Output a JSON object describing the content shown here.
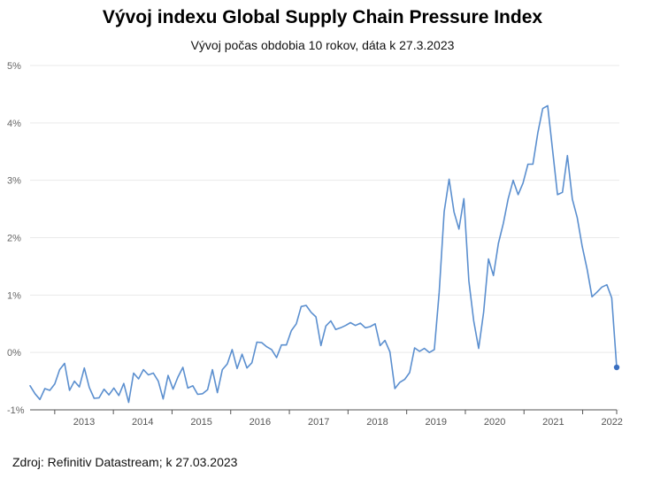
{
  "title": "Vývoj indexu Global Supply Chain Pressure Index",
  "subtitle": "Vývoj počas obdobia 10 rokov, dáta k 27.3.2023",
  "source": "Zdroj: Refinitiv Datastream; k 27.03.2023",
  "colors": {
    "line": "#5b8fcf",
    "marker": "#3a6fc0",
    "grid": "#e9e9e9",
    "axis": "#555555"
  },
  "chart_data": {
    "type": "line",
    "title": "Vývoj indexu Global Supply Chain Pressure Index",
    "subtitle": "Vývoj počas obdobia 10 rokov, dáta k 27.3.2023",
    "xlabel": "",
    "ylabel": "",
    "ylim": [
      -1,
      5
    ],
    "y_ticks": [
      -1,
      0,
      1,
      2,
      3,
      4,
      5
    ],
    "y_tick_labels": [
      "-1%",
      "0%",
      "1%",
      "2%",
      "3%",
      "4%",
      "5%"
    ],
    "x_ticks": [
      "2013",
      "2014",
      "2015",
      "2016",
      "2017",
      "2018",
      "2019",
      "2020",
      "2021",
      "2022"
    ],
    "x_start_year": 2012.58,
    "x_end_year": 2022.58,
    "grid": true,
    "series": [
      {
        "values": [
          -0.58,
          -0.72,
          -0.82,
          -0.63,
          -0.66,
          -0.55,
          -0.3,
          -0.19,
          -0.66,
          -0.5,
          -0.6,
          -0.27,
          -0.61,
          -0.8,
          -0.79,
          -0.64,
          -0.74,
          -0.62,
          -0.75,
          -0.54,
          -0.87,
          -0.36,
          -0.46,
          -0.3,
          -0.39,
          -0.36,
          -0.5,
          -0.81,
          -0.4,
          -0.64,
          -0.43,
          -0.26,
          -0.62,
          -0.58,
          -0.73,
          -0.72,
          -0.65,
          -0.3,
          -0.7,
          -0.3,
          -0.2,
          0.05,
          -0.28,
          -0.03,
          -0.27,
          -0.18,
          0.18,
          0.17,
          0.1,
          0.05,
          -0.09,
          0.13,
          0.13,
          0.38,
          0.5,
          0.8,
          0.82,
          0.7,
          0.62,
          0.12,
          0.46,
          0.55,
          0.4,
          0.43,
          0.47,
          0.52,
          0.47,
          0.51,
          0.43,
          0.45,
          0.5,
          0.12,
          0.21,
          0.01,
          -0.63,
          -0.52,
          -0.47,
          -0.35,
          0.08,
          0.02,
          0.07,
          0.0,
          0.05,
          1.05,
          2.45,
          3.02,
          2.45,
          2.15,
          2.68,
          1.25,
          0.55,
          0.07,
          0.7,
          1.63,
          1.34,
          1.9,
          2.25,
          2.68,
          3.0,
          2.75,
          2.95,
          3.28,
          3.28,
          3.83,
          4.25,
          4.3,
          3.52,
          2.75,
          2.79,
          3.43,
          2.67,
          2.35,
          1.85,
          1.45,
          0.97,
          1.05,
          1.14,
          1.18,
          0.95,
          -0.26
        ]
      }
    ]
  }
}
